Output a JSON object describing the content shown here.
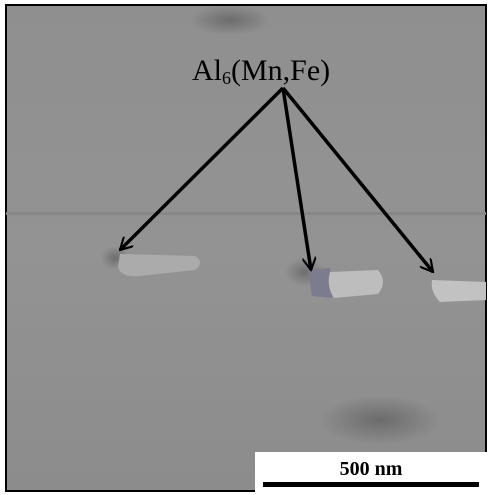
{
  "annotation": {
    "base": "Al",
    "subscript": "6",
    "rest": "(Mn,Fe)"
  },
  "scale_bar": {
    "label": "500 nm"
  }
}
